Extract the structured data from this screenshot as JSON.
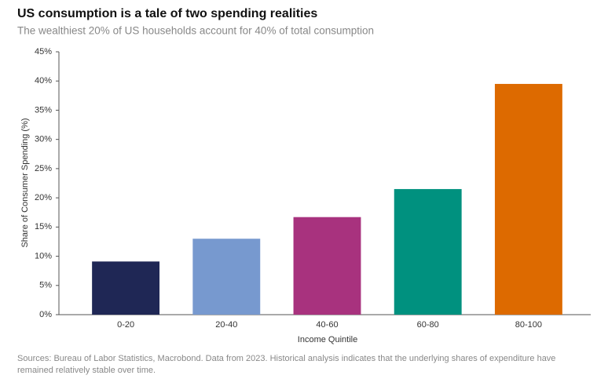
{
  "chart_data": {
    "type": "bar",
    "title": "US consumption is a tale of two spending realities",
    "subtitle": "The wealthiest 20% of US households account for 40% of total consumption",
    "x_label": "Income Quintile",
    "y_label": "Share of Consumer Spending (%)",
    "categories": [
      "0-20",
      "20-40",
      "40-60",
      "60-80",
      "80-100"
    ],
    "values": [
      9.1,
      13.0,
      16.7,
      21.5,
      39.5
    ],
    "colors": [
      "#1f2755",
      "#7799cf",
      "#a8327e",
      "#00917f",
      "#dd6a00"
    ],
    "ylim": [
      0,
      45
    ],
    "yticks": [
      {
        "value": 0,
        "label": "0%"
      },
      {
        "value": 5,
        "label": "5%"
      },
      {
        "value": 10,
        "label": "10%"
      },
      {
        "value": 15,
        "label": "15%"
      },
      {
        "value": 20,
        "label": "20%"
      },
      {
        "value": 25,
        "label": "25%"
      },
      {
        "value": 30,
        "label": "30%"
      },
      {
        "value": 35,
        "label": "35%"
      },
      {
        "value": 40,
        "label": "40%"
      },
      {
        "value": 45,
        "label": "45%"
      }
    ],
    "grid": false,
    "note": "Sources: Bureau of Labor Statistics, Macrobond. Data from 2023. Historical analysis indicates that the underlying shares of expenditure have remained relatively stable over time."
  }
}
